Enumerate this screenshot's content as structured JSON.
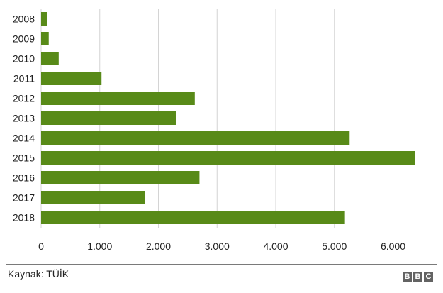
{
  "chart_data": {
    "type": "bar",
    "orientation": "horizontal",
    "categories": [
      "2008",
      "2009",
      "2010",
      "2011",
      "2012",
      "2013",
      "2014",
      "2015",
      "2016",
      "2017",
      "2018"
    ],
    "values": [
      100,
      130,
      300,
      1030,
      2620,
      2300,
      5260,
      6380,
      2700,
      1770,
      5180
    ],
    "xlim": [
      0,
      6500
    ],
    "xticks": [
      0,
      1000,
      2000,
      3000,
      4000,
      5000,
      6000
    ],
    "xtick_labels": [
      "0",
      "1.000",
      "2.000",
      "3.000",
      "4.000",
      "5.000",
      "6.000"
    ],
    "grid": "vertical",
    "bar_color": "#588a18",
    "grid_color": "#d4d4d4"
  },
  "footer": {
    "source": "Kaynak: TÜİK",
    "logo_letters": [
      "B",
      "B",
      "C"
    ]
  }
}
